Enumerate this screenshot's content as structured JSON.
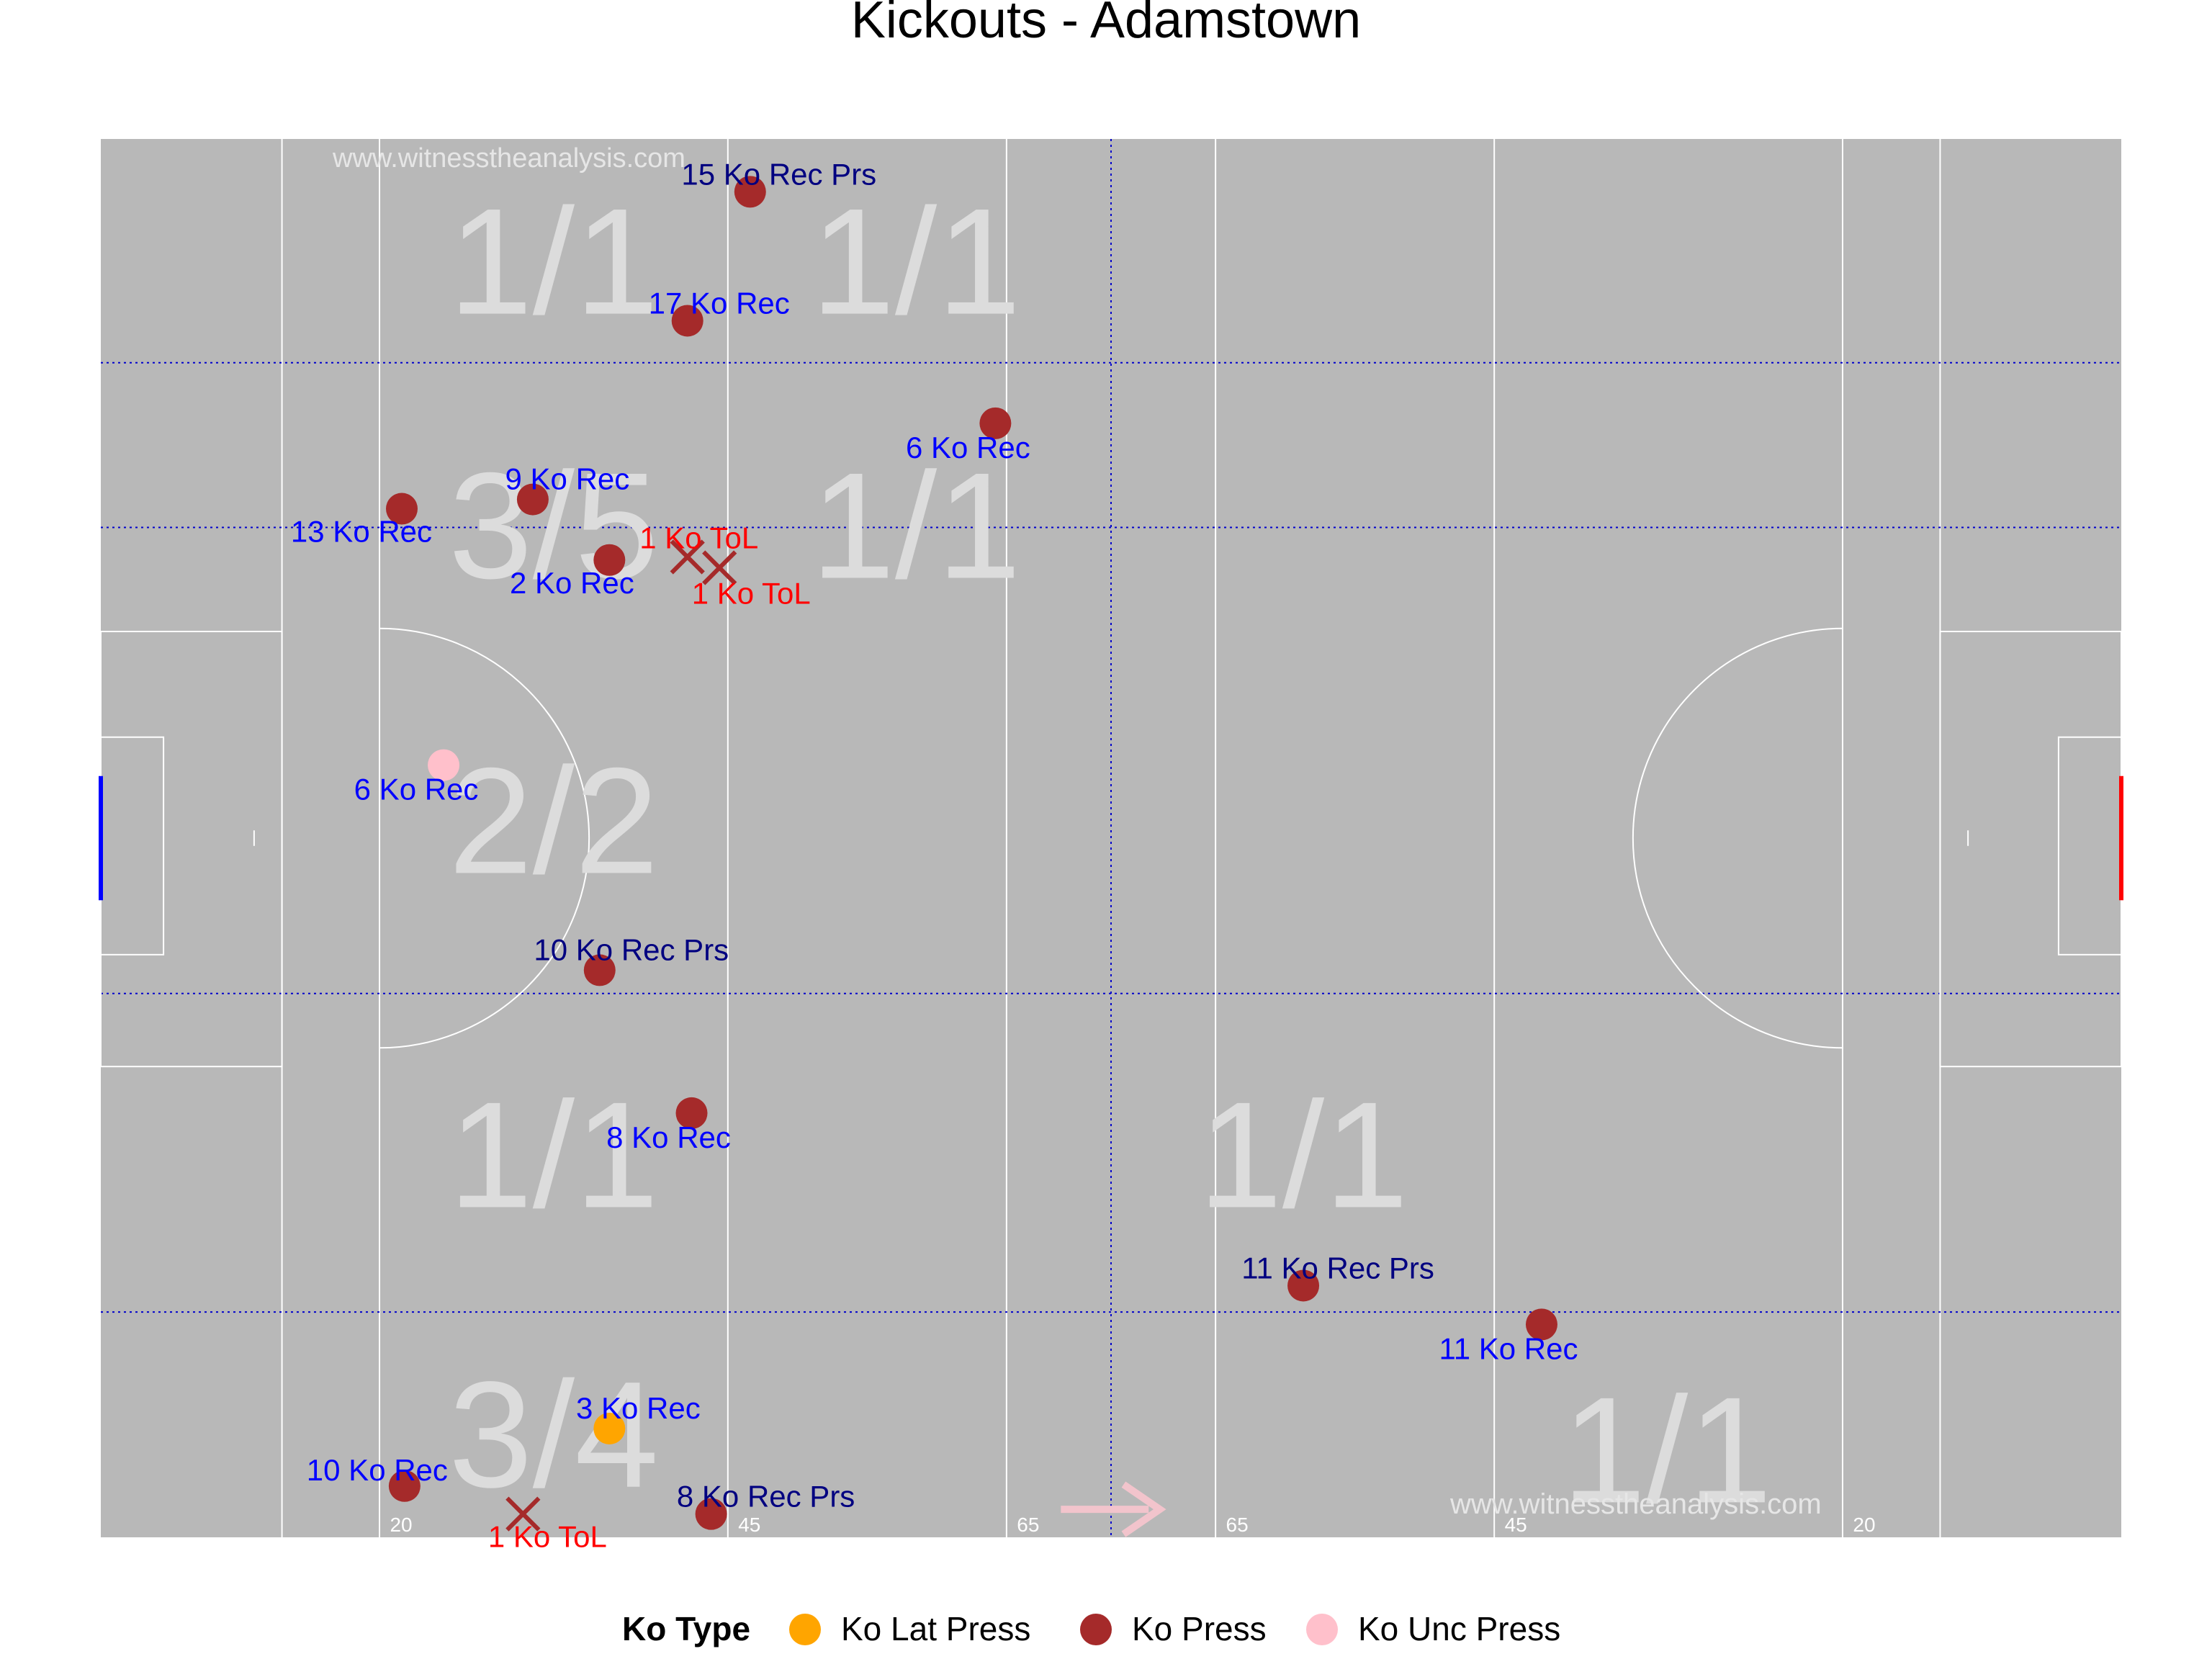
{
  "title": "Kickouts - Adamstown",
  "watermark": "www.witnesstheanalysis.com",
  "colors": {
    "pitch": "#b8b8b8",
    "lines": "#ffffff",
    "zone_lines": "#0000cc",
    "zone_text": "#dcdcdc",
    "watermark": "#e6e6e6",
    "label_blue": "#0000ff",
    "label_navy": "#000080",
    "label_red": "#ff0000",
    "goal_left": "#0000ff",
    "goal_right": "#ff0000",
    "arrow": "#f2c4cc",
    "dot_press": "#a52a2a",
    "dot_lat": "#ffa500",
    "dot_unc": "#ffc0cb",
    "marker_tol": "#a52a2a"
  },
  "chart_data": {
    "type": "scatter",
    "x_ticks": [
      "20",
      "45",
      "65",
      "65",
      "45",
      "20"
    ],
    "legend": {
      "title": "Ko Type",
      "position": "bottom",
      "items": [
        {
          "label": "Ko Lat Press",
          "color": "#ffa500"
        },
        {
          "label": "Ko Press",
          "color": "#a52a2a"
        },
        {
          "label": "Ko Unc Press",
          "color": "#ffc0cb"
        }
      ]
    },
    "zones": [
      "1/1",
      "1/1",
      "3/5",
      "1/1",
      "2/2",
      "1/1",
      "1/1",
      "3/4",
      "1/1"
    ],
    "points": [
      {
        "label": "15 Ko Rec Prs",
        "type": "Ko Press",
        "marker": "circle",
        "label_color": "navy",
        "x": 46.6,
        "y": 86.6
      },
      {
        "label": "17 Ko Rec",
        "type": "Ko Press",
        "marker": "circle",
        "label_color": "blue",
        "x": 42.1,
        "y": 78.3
      },
      {
        "label": "6 Ko Rec",
        "type": "Ko Press",
        "marker": "circle",
        "label_color": "blue",
        "x": 64.2,
        "y": 71.7
      },
      {
        "label": "9 Ko Rec",
        "type": "Ko Press",
        "marker": "circle",
        "label_color": "blue",
        "x": 31.0,
        "y": 66.8
      },
      {
        "label": "13 Ko Rec",
        "type": "Ko Press",
        "marker": "circle",
        "label_color": "blue",
        "x": 21.6,
        "y": 66.2
      },
      {
        "label": "2 Ko Rec",
        "type": "Ko Press",
        "marker": "circle",
        "label_color": "blue",
        "x": 36.5,
        "y": 62.9
      },
      {
        "label": "1 Ko ToL",
        "type": "Ko Press",
        "marker": "cross",
        "label_color": "red",
        "x": 42.1,
        "y": 63.1
      },
      {
        "label": "1 Ko ToL",
        "type": "Ko Press",
        "marker": "cross",
        "label_color": "red",
        "x": 44.4,
        "y": 62.4
      },
      {
        "label": "6 Ko Rec",
        "type": "Ko Unc Press",
        "marker": "circle",
        "label_color": "blue",
        "x": 24.6,
        "y": 49.7
      },
      {
        "label": "10 Ko Rec Prs",
        "type": "Ko Press",
        "marker": "circle",
        "label_color": "navy",
        "x": 35.8,
        "y": 36.5
      },
      {
        "label": "8 Ko Rec",
        "type": "Ko Press",
        "marker": "circle",
        "label_color": "blue",
        "x": 42.4,
        "y": 27.3
      },
      {
        "label": "11 Ko Rec Prs",
        "type": "Ko Press",
        "marker": "circle",
        "label_color": "navy",
        "x": 86.3,
        "y": 16.2
      },
      {
        "label": "11 Ko Rec",
        "type": "Ko Press",
        "marker": "circle",
        "label_color": "blue",
        "x": 103.4,
        "y": 13.7
      },
      {
        "label": "3 Ko Rec",
        "type": "Ko Lat Press",
        "marker": "circle",
        "label_color": "blue",
        "x": 36.5,
        "y": 7.0
      },
      {
        "label": "10 Ko Rec",
        "type": "Ko Press",
        "marker": "circle",
        "label_color": "blue",
        "x": 21.8,
        "y": 3.3
      },
      {
        "label": "1 Ko ToL",
        "type": "Ko Press",
        "marker": "cross",
        "label_color": "red",
        "x": 30.3,
        "y": 1.5
      },
      {
        "label": "8 Ko Rec Prs",
        "type": "Ko Press",
        "marker": "circle",
        "label_color": "navy",
        "x": 43.8,
        "y": 1.5
      }
    ]
  }
}
